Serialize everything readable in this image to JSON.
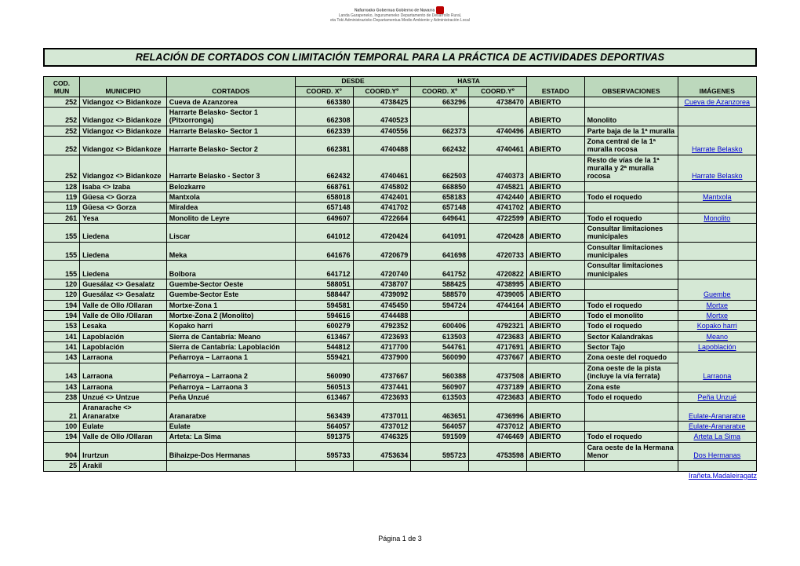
{
  "logo": {
    "line1": "Nafarroako Gobernua   Gobierno de Navarra",
    "line2": "Landa Garapeneko, Ingurumeneko   Departamento de Desarrollo Rural,",
    "line3": "eta Toki Administrazioko Departamentua   Medio Ambiente y Administración Local"
  },
  "title": "RELACIÓN DE CORTADOS CON LIMITACIÓN TEMPORAL PARA LA PRÁCTICA DE ACTIVIDADES DEPORTIVAS",
  "columns": {
    "desde": "DESDE",
    "hasta": "HASTA",
    "cod_mun": "COD. MUN",
    "municipio": "MUNICIPIO",
    "cortados": "CORTADOS",
    "coord_x": "COORD. Xº",
    "coord_y": "COORD.Yº",
    "estado": "ESTADO",
    "observaciones": "OBSERVACIONES",
    "imagenes": "IMÁGENES"
  },
  "rows": [
    {
      "cod": "252",
      "mun": "Vidangoz <> Bidankoze",
      "cort": "Cueva de Azanzorea",
      "x1": "663380",
      "y1": "4738425",
      "x2": "663296",
      "y2": "4738470",
      "est": "ABIERTO",
      "obs": "",
      "img": "Cueva de Azanzorea",
      "img_merge_up": false
    },
    {
      "cod": "252",
      "mun": "Vidangoz <> Bidankoze",
      "cort": "Harrarte Belasko- Sector 1 (Pitxorronga)",
      "x1": "662308",
      "y1": "4740523",
      "x2": "",
      "y2": "",
      "est": "ABIERTO",
      "obs": "Monolito",
      "img": "",
      "img_merge_up": false
    },
    {
      "cod": "252",
      "mun": "Vidangoz <> Bidankoze",
      "cort": "Harrarte Belasko- Sector 1",
      "x1": "662339",
      "y1": "4740556",
      "x2": "662373",
      "y2": "4740496",
      "est": "ABIERTO",
      "obs": "Parte baja de la 1ª muralla",
      "img": "Harrate Belasko",
      "img_rowspan": 2
    },
    {
      "cod": "252",
      "mun": "Vidangoz <> Bidankoze",
      "cort": "Harrarte Belasko- Sector 2",
      "x1": "662381",
      "y1": "4740488",
      "x2": "662432",
      "y2": "4740461",
      "est": "ABIERTO",
      "obs": "Zona central de la 1ª muralla rocosa",
      "img_merge_up": true
    },
    {
      "cod": "252",
      "mun": "Vidangoz <> Bidankoze",
      "cort": "Harrarte Belasko - Sector 3",
      "x1": "662432",
      "y1": "4740461",
      "x2": "662503",
      "y2": "4740373",
      "est": "ABIERTO",
      "obs": "Resto de vías de la 1ª muralla y 2ª muralla rocosa",
      "img": "Harrate Belasko",
      "img_merge_up": false
    },
    {
      "cod": "128",
      "mun": "Isaba <> Izaba",
      "cort": "Belozkarre",
      "x1": "668761",
      "y1": "4745802",
      "x2": "668850",
      "y2": "4745821",
      "est": "ABIERTO",
      "obs": "",
      "img": "",
      "img_merge_up": false
    },
    {
      "cod": "119",
      "mun": "Güesa <> Gorza",
      "cort": "Mantxola",
      "x1": "658018",
      "y1": "4742401",
      "x2": "658183",
      "y2": "4742440",
      "est": "ABIERTO",
      "obs": "Todo el roquedo",
      "img": "Mantxola",
      "img_merge_up": false
    },
    {
      "cod": "119",
      "mun": "Güesa <> Gorza",
      "cort": "Miraldea",
      "x1": "657148",
      "y1": "4741702",
      "x2": "657148",
      "y2": "4741702",
      "est": "ABIERTO",
      "obs": "",
      "img": "",
      "img_merge_up": false
    },
    {
      "cod": "261",
      "mun": "Yesa",
      "cort": "Monolito de Leyre",
      "x1": "649607",
      "y1": "4722664",
      "x2": "649641",
      "y2": "4722599",
      "est": "ABIERTO",
      "obs": "Todo el roquedo",
      "img": "Monolito",
      "img_merge_up": false
    },
    {
      "cod": "155",
      "mun": "Liedena",
      "cort": "Liscar",
      "x1": "641012",
      "y1": "4720424",
      "x2": "641091",
      "y2": "4720428",
      "est": "ABIERTO",
      "obs": "Consultar limitaciones municipales",
      "img": "",
      "img_merge_up": false
    },
    {
      "cod": "155",
      "mun": "Liedena",
      "cort": "Meka",
      "x1": "641676",
      "y1": "4720679",
      "x2": "641698",
      "y2": "4720733",
      "est": "ABIERTO",
      "obs": "Consultar limitaciones municipales",
      "img": "",
      "img_merge_up": false
    },
    {
      "cod": "155",
      "mun": "Liedena",
      "cort": "Bolbora",
      "x1": "641712",
      "y1": "4720740",
      "x2": "641752",
      "y2": "4720822",
      "est": "ABIERTO",
      "obs": "Consultar limitaciones municipales",
      "img": "",
      "img_merge_up": false
    },
    {
      "cod": "120",
      "mun": "Guesálaz <> Gesalatz",
      "cort": "Guembe-Sector Oeste",
      "x1": "588051",
      "y1": "4738707",
      "x2": "588425",
      "y2": "4738995",
      "est": "ABIERTO",
      "obs": "",
      "img": "Guembe",
      "img_rowspan": 2
    },
    {
      "cod": "120",
      "mun": "Guesálaz <> Gesalatz",
      "cort": "Guembe-Sector Este",
      "x1": "588447",
      "y1": "4739092",
      "x2": "588570",
      "y2": "4739005",
      "est": "ABIERTO",
      "obs": "",
      "img_merge_up": true
    },
    {
      "cod": "194",
      "mun": "Valle de Ollo /Ollaran",
      "cort": "Mortxe-Zona 1",
      "x1": "594581",
      "y1": "4745450",
      "x2": "594724",
      "y2": "4744164",
      "est": "ABIERTO",
      "obs": "Todo el roquedo",
      "img": "Mortxe",
      "img_merge_up": false
    },
    {
      "cod": "194",
      "mun": "Valle de Ollo /Ollaran",
      "cort": "Mortxe-Zona 2 (Monolito)",
      "x1": "594616",
      "y1": "4744488",
      "x2": "",
      "y2": "",
      "est": "ABIERTO",
      "obs": "Todo el monolito",
      "img": "Mortxe",
      "img_merge_up": false
    },
    {
      "cod": "153",
      "mun": "Lesaka",
      "cort": "Kopako harri",
      "x1": "600279",
      "y1": "4792352",
      "x2": "600406",
      "y2": "4792321",
      "est": "ABIERTO",
      "obs": "Todo el roquedo",
      "img": "Kopako harri",
      "img_merge_up": false
    },
    {
      "cod": "141",
      "mun": "Lapoblación",
      "cort": "Sierra de Cantabría: Meano",
      "x1": "613467",
      "y1": "4723693",
      "x2": "613503",
      "y2": "4723683",
      "est": "ABIERTO",
      "obs": "Sector Kalandrakas",
      "img": "Meano",
      "img_merge_up": false
    },
    {
      "cod": "141",
      "mun": "Lapoblación",
      "cort": "Sierra de Cantabría: Lapoblación",
      "x1": "544812",
      "y1": "4717700",
      "x2": "544761",
      "y2": "4717691",
      "est": "ABIERTO",
      "obs": "Sector Tajo",
      "img": "Lapoblación",
      "img_merge_up": false
    },
    {
      "cod": "143",
      "mun": "Larraona",
      "cort": "Peñarroya – Larraona 1",
      "x1": "559421",
      "y1": "4737900",
      "x2": "560090",
      "y2": "4737667",
      "est": "ABIERTO",
      "obs": "Zona oeste del roquedo",
      "img": "Larraona",
      "img_rowspan": 2
    },
    {
      "cod": "143",
      "mun": "Larraona",
      "cort": "Peñarroya – Larraona 2",
      "x1": "560090",
      "y1": "4737667",
      "x2": "560388",
      "y2": "4737508",
      "est": "ABIERTO",
      "obs": "Zona oeste de la pista (incluye la vía ferrata)",
      "img_merge_up": true
    },
    {
      "cod": "143",
      "mun": "Larraona",
      "cort": "Peñarroya – Larraona 3",
      "x1": "560513",
      "y1": "4737441",
      "x2": "560907",
      "y2": "4737189",
      "est": "ABIERTO",
      "obs": "Zona este",
      "img": "",
      "img_merge_up": false
    },
    {
      "cod": "238",
      "mun": "Unzué <> Untzue",
      "cort": "Peña Unzué",
      "x1": "613467",
      "y1": "4723693",
      "x2": "613503",
      "y2": "4723683",
      "est": "ABIERTO",
      "obs": "Todo el roquedo",
      "img": "Peña Unzué",
      "img_merge_up": false
    },
    {
      "cod": "21",
      "mun": "Aranarache <> Aranaratxe",
      "cort": "Aranaratxe",
      "x1": "563439",
      "y1": "4737011",
      "x2": "463651",
      "y2": "4736996",
      "est": "ABIERTO",
      "obs": "",
      "img": "Eulate-Aranaratxe",
      "img_merge_up": false
    },
    {
      "cod": "100",
      "mun": "Eulate",
      "cort": "Eulate",
      "x1": "564057",
      "y1": "4737012",
      "x2": "564057",
      "y2": "4737012",
      "est": "ABIERTO",
      "obs": "",
      "img": "Eulate-Aranaratxe",
      "img_merge_up": false
    },
    {
      "cod": "194",
      "mun": "Valle de Ollo /Ollaran",
      "cort": "Arteta: La Sima",
      "x1": "591375",
      "y1": "4746325",
      "x2": "591509",
      "y2": "4746469",
      "est": "ABIERTO",
      "obs": "Todo el roquedo",
      "img": "Arteta La Sima",
      "img_merge_up": false
    },
    {
      "cod": "904",
      "mun": "Irurtzun",
      "cort": "Bihaizpe-Dos Hermanas",
      "x1": "595733",
      "y1": "4753634",
      "x2": "595723",
      "y2": "4753598",
      "est": "ABIERTO",
      "obs": "Cara oeste de la Hermana Menor",
      "img": "Dos Hermanas",
      "img_merge_up": false
    },
    {
      "cod": "25",
      "mun": "Arakil",
      "cort": "",
      "x1": "",
      "y1": "",
      "x2": "",
      "y2": "",
      "est": "",
      "obs": "",
      "img": "",
      "img_merge_up": false
    }
  ],
  "partial_link": "Irañeta.Madaleiragatz",
  "footer": "Página 1 de 3",
  "colors": {
    "header_bg": "#bcd8bc",
    "cell_bg": "#d5e8d5",
    "border": "#000000",
    "link": "#0000d0"
  }
}
